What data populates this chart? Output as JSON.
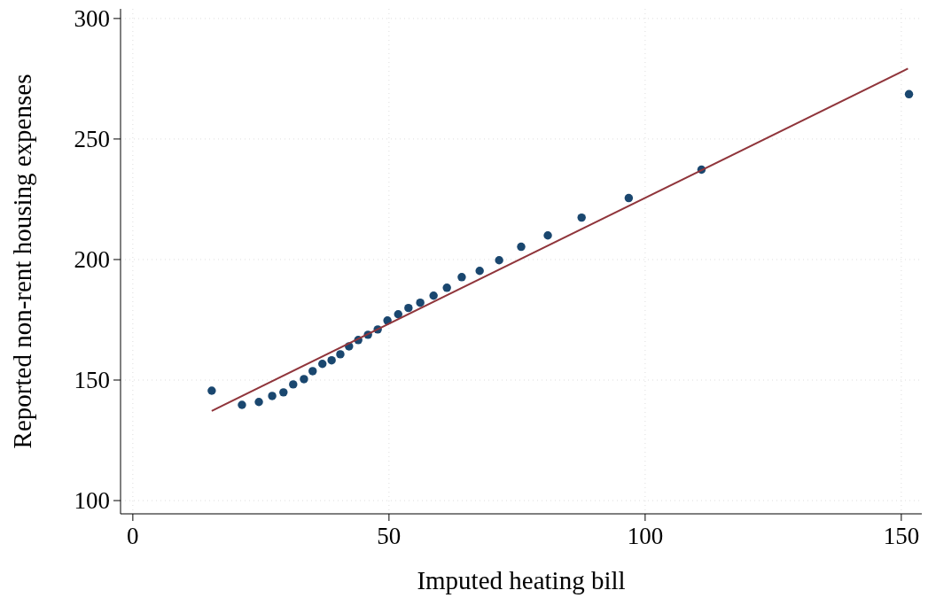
{
  "chart_data": {
    "type": "scatter",
    "xlabel": "Imputed heating bill",
    "ylabel": "Reported non-rent housing expenses",
    "xlim": [
      -2.4,
      154
    ],
    "ylim": [
      94.5,
      304
    ],
    "xticks": [
      0,
      50,
      100,
      150
    ],
    "yticks": [
      100,
      150,
      200,
      250,
      300
    ],
    "grid": true,
    "series": [
      {
        "marker": "circle",
        "color": "#1a476f",
        "x": [
          15.4,
          21.3,
          24.6,
          27.2,
          29.4,
          31.3,
          33.4,
          35.1,
          37.0,
          38.8,
          40.5,
          42.2,
          44.0,
          45.9,
          47.8,
          49.7,
          51.8,
          53.8,
          56.1,
          58.7,
          61.3,
          64.2,
          67.7,
          71.5,
          75.8,
          81.0,
          87.6,
          96.8,
          111.0,
          151.5
        ],
        "values": [
          145.6,
          139.7,
          140.9,
          143.4,
          144.9,
          148.2,
          150.4,
          153.7,
          156.7,
          158.2,
          160.7,
          164.0,
          166.6,
          168.8,
          171.0,
          174.7,
          177.3,
          179.9,
          182.1,
          185.0,
          188.3,
          192.7,
          195.3,
          199.7,
          205.3,
          210.0,
          217.4,
          225.5,
          237.3,
          268.6
        ]
      },
      {
        "type": "line",
        "marker": "none",
        "color": "#90353b",
        "x": [
          15.4,
          151.3
        ],
        "values": [
          137.2,
          279.2
        ]
      }
    ]
  }
}
